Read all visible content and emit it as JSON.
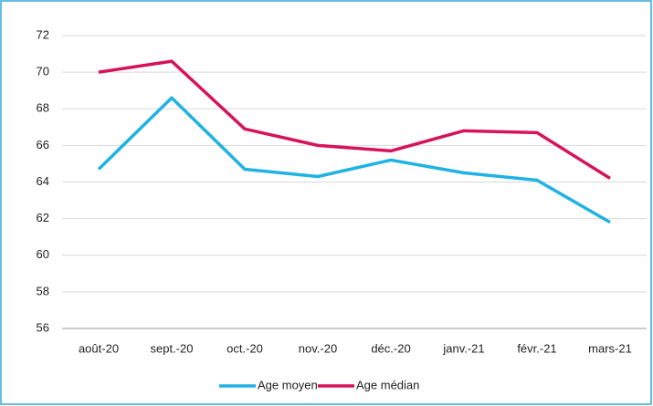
{
  "chart_data": {
    "type": "line",
    "categories": [
      "août-20",
      "sept.-20",
      "oct.-20",
      "nov.-20",
      "déc.-20",
      "janv.-21",
      "févr.-21",
      "mars-21"
    ],
    "series": [
      {
        "name": "Age moyen",
        "color": "#1fb2e3",
        "values": [
          64.7,
          68.6,
          64.7,
          64.3,
          65.2,
          64.5,
          64.1,
          61.8
        ]
      },
      {
        "name": "Age médian",
        "color": "#d6145c",
        "values": [
          70.0,
          70.6,
          66.9,
          66.0,
          65.7,
          66.8,
          66.7,
          64.2
        ]
      }
    ],
    "ylim": [
      56,
      72
    ],
    "yticks": [
      56,
      58,
      60,
      62,
      64,
      66,
      68,
      70,
      72
    ],
    "grid": true,
    "legend": "bottom"
  }
}
